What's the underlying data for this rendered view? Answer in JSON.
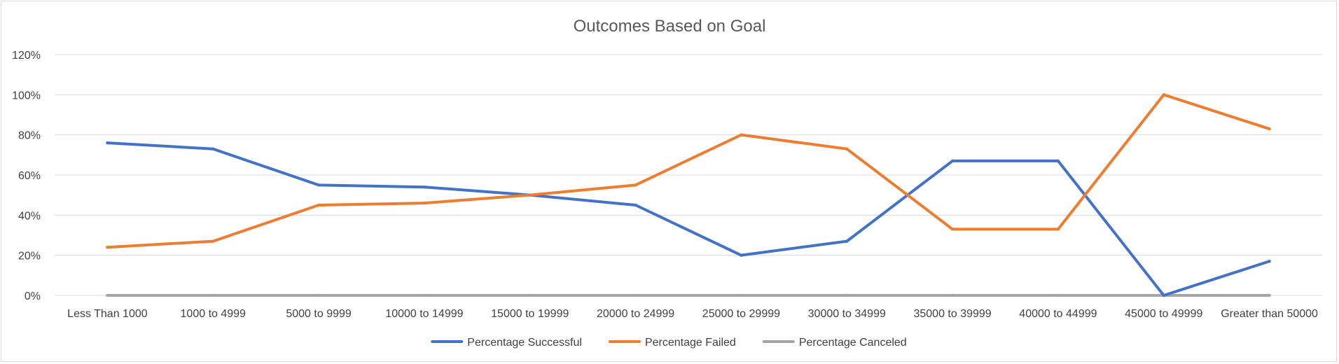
{
  "chart_data": {
    "type": "line",
    "title": "Outcomes Based on Goal",
    "xlabel": "",
    "ylabel": "",
    "ylim": [
      0,
      1.2
    ],
    "yticks": [
      "0%",
      "20%",
      "40%",
      "60%",
      "80%",
      "100%",
      "120%"
    ],
    "grid": true,
    "legend_position": "bottom",
    "categories": [
      "Less Than 1000",
      "1000 to 4999",
      "5000 to 9999",
      "10000 to 14999",
      "15000 to 19999",
      "20000 to 24999",
      "25000 to 29999",
      "30000 to 34999",
      "35000 to 39999",
      "40000 to 44999",
      "45000 to 49999",
      "Greater than 50000"
    ],
    "series": [
      {
        "name": "Percentage Successful",
        "color": "#4472C4",
        "values": [
          0.76,
          0.73,
          0.55,
          0.54,
          0.5,
          0.45,
          0.2,
          0.27,
          0.67,
          0.67,
          0.0,
          0.17
        ]
      },
      {
        "name": "Percentage Failed",
        "color": "#ED7D31",
        "values": [
          0.24,
          0.27,
          0.45,
          0.46,
          0.5,
          0.55,
          0.8,
          0.73,
          0.33,
          0.33,
          1.0,
          0.83
        ]
      },
      {
        "name": "Percentage Canceled",
        "color": "#A5A5A5",
        "values": [
          0,
          0,
          0,
          0,
          0,
          0,
          0,
          0,
          0,
          0,
          0,
          0
        ]
      }
    ]
  }
}
